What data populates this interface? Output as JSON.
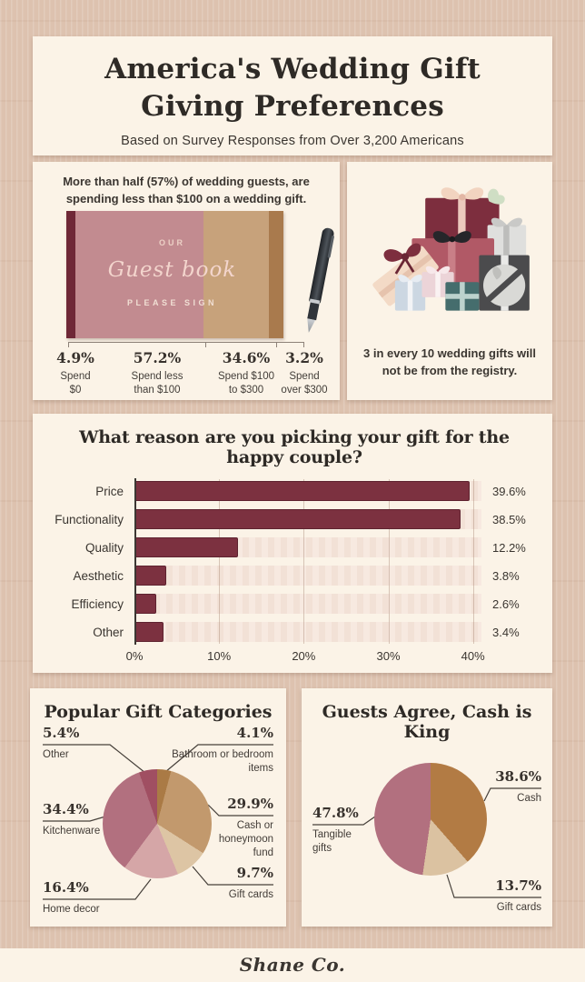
{
  "colors": {
    "page_bg": "#ddc2af",
    "panel_bg": "#fbf3e7",
    "ink": "#34302b",
    "body_text": "#3e3934",
    "wine": "#7c3140",
    "track_pink": "#f6e7dd"
  },
  "header": {
    "title": "America's Wedding Gift\nGiving Preferences",
    "subtitle": "Based on Survey Responses from Over 3,200 Americans"
  },
  "spend_panel": {
    "intro": "More than half (57%) of wedding guests, are\nspending less than $100 on a wedding gift.",
    "book": {
      "top_label": "OUR",
      "script_label": "Guest book",
      "bottom_label": "PLEASE SIGN"
    }
  },
  "registry_panel": {
    "caption": "3 in every 10 wedding gifts will\nnot be from the registry."
  },
  "footer": {
    "brand": "Shane Co."
  },
  "chart_data": [
    {
      "type": "bar",
      "id": "spend_distribution",
      "title": "More than half (57%) of wedding guests, are spending less than $100 on a wedding gift.",
      "categories": [
        "Spend $0",
        "Spend less than $100",
        "Spend $100 to $300",
        "Spend over $300"
      ],
      "display_labels": [
        "Spend\n$0",
        "Spend less\nthan $100",
        "Spend $100\nto $300",
        "Spend\nover $300"
      ],
      "values": [
        4.9,
        57.2,
        34.6,
        3.2
      ],
      "value_labels": [
        "4.9%",
        "57.2%",
        "34.6%",
        "3.2%"
      ]
    },
    {
      "type": "bar",
      "id": "gift_reason",
      "title": "What reason are you picking your gift for the happy couple?",
      "categories": [
        "Price",
        "Functionality",
        "Quality",
        "Aesthetic",
        "Efficiency",
        "Other"
      ],
      "values": [
        39.6,
        38.5,
        12.2,
        3.8,
        2.6,
        3.4
      ],
      "value_labels": [
        "39.6%",
        "38.5%",
        "12.2%",
        "3.8%",
        "2.6%",
        "3.4%"
      ],
      "xlabel_ticks": [
        "0%",
        "10%",
        "20%",
        "30%",
        "40%"
      ],
      "xlim": [
        0,
        41
      ],
      "bar_color": "#7c3140",
      "legend": "none",
      "grid": "vertical"
    },
    {
      "type": "pie",
      "id": "gift_categories",
      "title": "Popular Gift Categories",
      "slices": [
        {
          "label": "Bathroom or bedroom items",
          "value": 4.1,
          "pct": "4.1%",
          "color": "#aa7a45"
        },
        {
          "label": "Cash or honeymoon fund",
          "value": 29.9,
          "pct": "29.9%",
          "color": "#c2996d"
        },
        {
          "label": "Gift cards",
          "value": 9.7,
          "pct": "9.7%",
          "color": "#ddc5a4"
        },
        {
          "label": "Home decor",
          "value": 16.4,
          "pct": "16.4%",
          "color": "#d5a6a7"
        },
        {
          "label": "Kitchenware",
          "value": 34.4,
          "pct": "34.4%",
          "color": "#b2707f"
        },
        {
          "label": "Other",
          "value": 5.4,
          "pct": "5.4%",
          "color": "#a04f62"
        }
      ]
    },
    {
      "type": "pie",
      "id": "cash_is_king",
      "title": "Guests Agree, Cash is King",
      "slices": [
        {
          "label": "Cash",
          "value": 38.6,
          "pct": "38.6%",
          "color": "#b27b44"
        },
        {
          "label": "Gift cards",
          "value": 13.7,
          "pct": "13.7%",
          "color": "#dbc2a1"
        },
        {
          "label": "Tangible gifts",
          "value": 47.8,
          "pct": "47.8%",
          "color": "#b2707f"
        }
      ]
    }
  ]
}
